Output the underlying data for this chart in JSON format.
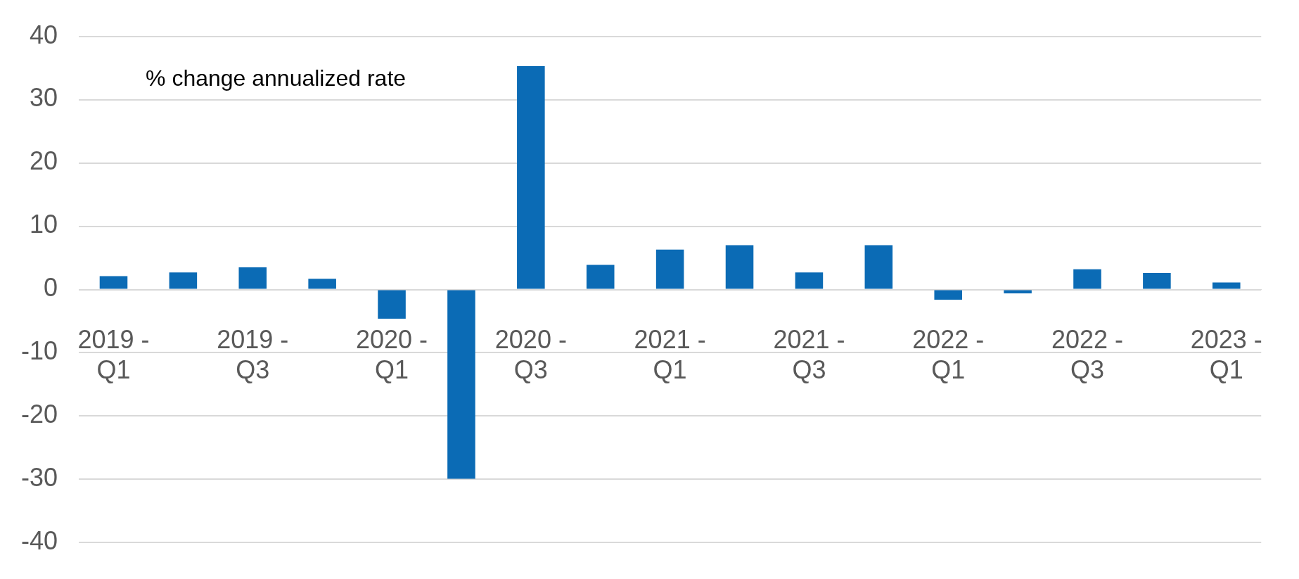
{
  "chart_data": {
    "type": "bar",
    "annotations": [
      "% change annualized rate"
    ],
    "categories": [
      "2019 - Q1",
      null,
      "2019 - Q3",
      null,
      "2020 - Q1",
      null,
      "2020 - Q3",
      null,
      "2021 - Q1",
      null,
      "2021 - Q3",
      null,
      "2022 - Q1",
      null,
      "2022 - Q3",
      null,
      "2023 - Q1"
    ],
    "values": [
      2.1,
      2.7,
      3.5,
      1.7,
      -4.6,
      -29.9,
      35.3,
      3.9,
      6.3,
      7.0,
      2.7,
      7.0,
      -1.6,
      -0.6,
      3.2,
      2.6,
      1.1
    ],
    "color": "#0b6bb5",
    "ylim": [
      -40,
      40
    ],
    "yticks": [
      -40,
      -30,
      -20,
      -10,
      0,
      10,
      20,
      30,
      40
    ],
    "grid": "y",
    "legend": false
  }
}
